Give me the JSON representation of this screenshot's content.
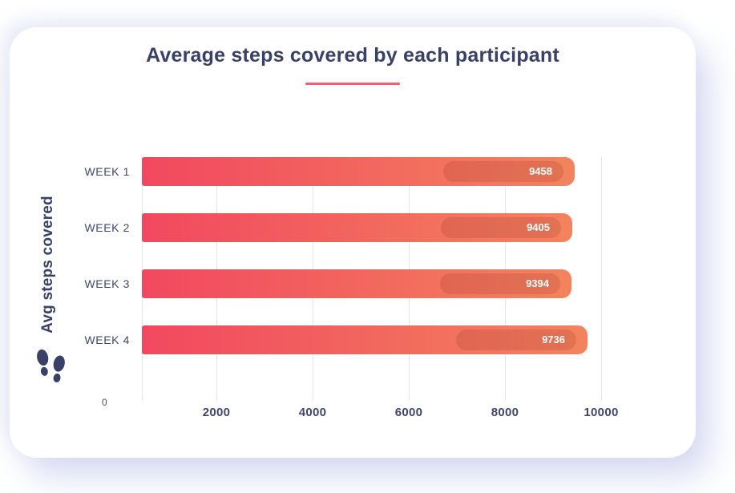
{
  "page": {
    "background": "#ffffff"
  },
  "chart_data": {
    "type": "bar",
    "orientation": "horizontal",
    "title": "Average steps covered by each participant",
    "ylabel": "Avg steps covered",
    "xlabel": "",
    "categories": [
      "WEEK 1",
      "WEEK 2",
      "WEEK 3",
      "WEEK 4"
    ],
    "values": [
      9458,
      9405,
      9394,
      9736
    ],
    "xlim": [
      0,
      10000
    ],
    "x_ticks": [
      0,
      2000,
      4000,
      6000,
      8000,
      10000
    ],
    "grid": true,
    "legend": "none",
    "icon": "footprints-icon",
    "colors": {
      "bar_gradient_start": "#f2485f",
      "bar_gradient_end": "#f3835e",
      "value_badge_overlay": "rgba(131,35,28,0.16)",
      "value_text": "#ffffff",
      "title_text": "#3a4168",
      "axis_text": "#3f466f",
      "underline": "#f75d70",
      "gridline": "#e4e4e9",
      "card_background": "#ffffff"
    }
  }
}
